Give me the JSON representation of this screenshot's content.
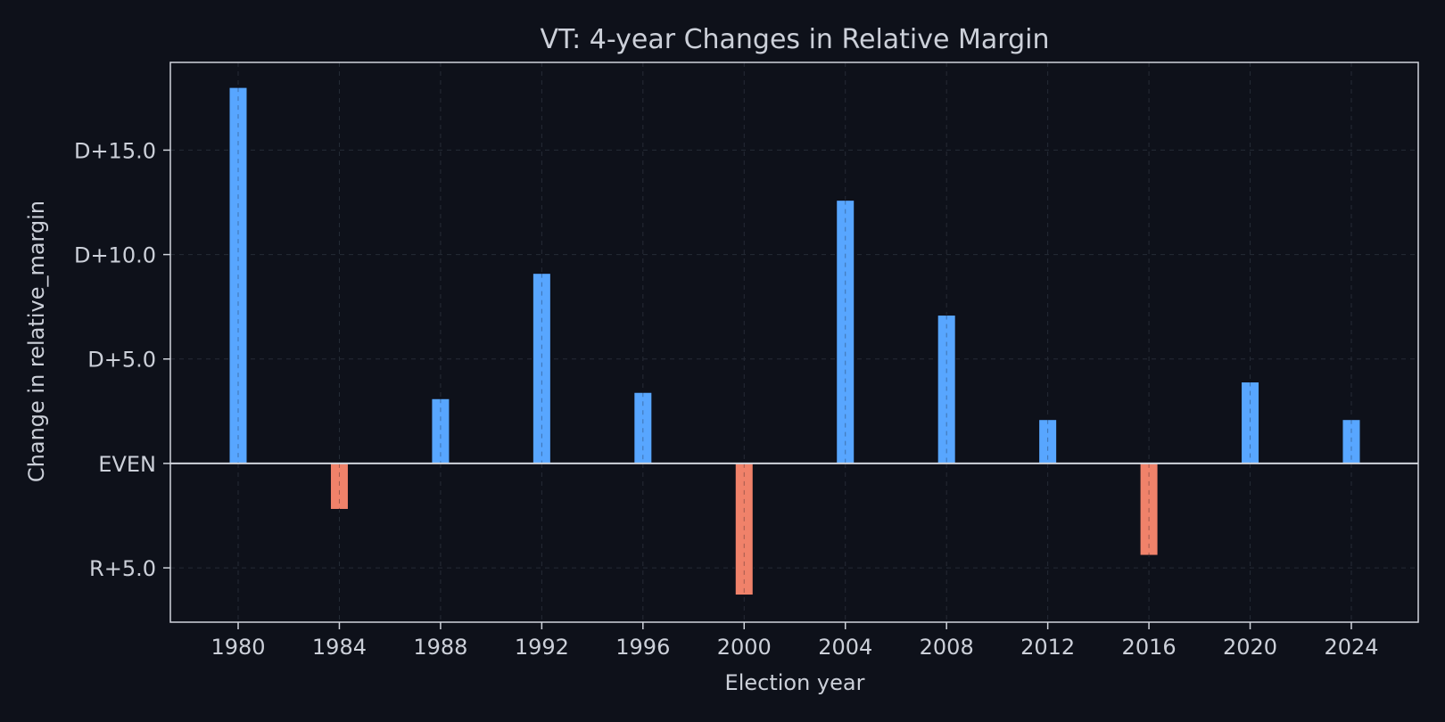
{
  "chart_data": {
    "type": "bar",
    "title": "VT: 4-year Changes in Relative Margin",
    "xlabel": "Election year",
    "ylabel": "Change in relative_margin",
    "categories": [
      "1980",
      "1984",
      "1988",
      "1992",
      "1996",
      "2000",
      "2004",
      "2008",
      "2012",
      "2016",
      "2020",
      "2024"
    ],
    "values": [
      18.0,
      -2.2,
      3.1,
      9.1,
      3.4,
      -6.3,
      12.6,
      7.1,
      2.1,
      -4.4,
      3.9,
      2.1
    ],
    "ylim": [
      -7.6,
      19.2
    ],
    "yticks": [
      {
        "value": 15,
        "label": "D+15.0"
      },
      {
        "value": 10,
        "label": "D+10.0"
      },
      {
        "value": 5,
        "label": "D+5.0"
      },
      {
        "value": 0,
        "label": "EVEN"
      },
      {
        "value": -5,
        "label": "R+5.0"
      }
    ],
    "grid": true,
    "colors": {
      "positive": "#58a6ff",
      "negative": "#f0826a",
      "background": "#0e111a",
      "text": "#ccd0d9",
      "axis": "#d0d4dc",
      "grid": "#262b36"
    }
  }
}
